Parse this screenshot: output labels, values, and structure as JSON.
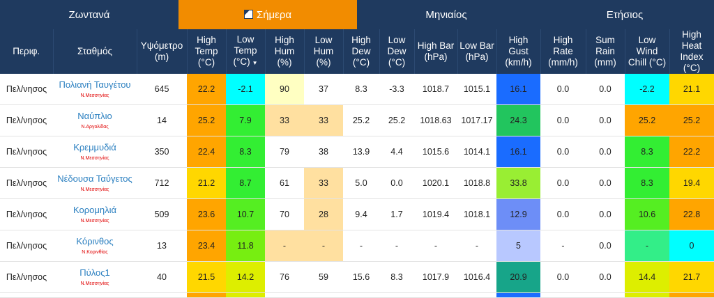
{
  "tabs": [
    {
      "label": "Ζωντανά",
      "active": false
    },
    {
      "label": "Σήμερα",
      "active": true,
      "icon": "calendar-icon"
    },
    {
      "label": "Μηνιαίος",
      "active": false
    },
    {
      "label": "Ετήσιος",
      "active": false
    }
  ],
  "headers": {
    "region": "Περιφ.",
    "station": "Σταθμός",
    "altitude": [
      "Υψόμετρο",
      "(m)"
    ],
    "high_temp": [
      "High",
      "Temp",
      "(°C)"
    ],
    "low_temp": [
      "Low",
      "Temp",
      "(°C)"
    ],
    "high_hum": [
      "High",
      "Hum",
      "(%)"
    ],
    "low_hum": [
      "Low",
      "Hum",
      "(%)"
    ],
    "high_dew": [
      "High",
      "Dew",
      "(°C)"
    ],
    "low_dew": [
      "Low",
      "Dew",
      "(°C)"
    ],
    "high_bar": [
      "High Bar",
      "(hPa)"
    ],
    "low_bar": [
      "Low Bar",
      "(hPa)"
    ],
    "high_gust": [
      "High Gust",
      "(km/h)"
    ],
    "high_rate": [
      "High Rate",
      "(mm/h)"
    ],
    "sum_rain": [
      "Sum",
      "Rain",
      "(mm)"
    ],
    "low_wind_chill": [
      "Low Wind",
      "Chill (°C)"
    ],
    "high_heat_index": [
      "High Heat",
      "Index (°C)"
    ],
    "sort_indicator": "▼"
  },
  "rows": [
    {
      "region": "Πελ/νησος",
      "station": "Πολιανή Ταυγέτου",
      "sub": "Ν.Μεσσηνίας",
      "altitude": "645",
      "high_temp": "22.2",
      "low_temp": "-2.1",
      "high_hum": "90",
      "low_hum": "37",
      "high_dew": "8.3",
      "low_dew": "-3.3",
      "high_bar": "1018.7",
      "low_bar": "1015.1",
      "high_gust": "16.1",
      "high_rate": "0.0",
      "sum_rain": "0.0",
      "low_wind_chill": "-2.2",
      "high_heat_index": "21.1",
      "colors": {
        "high_temp": "#ffa500",
        "low_temp": "#00ffff",
        "high_hum": "#ffffc2",
        "low_hum": "",
        "high_dew": "",
        "low_dew": "",
        "high_bar": "",
        "low_bar": "",
        "high_gust": "#1a6cff",
        "high_rate": "",
        "sum_rain": "",
        "low_wind_chill": "#00ffff",
        "high_heat_index": "#ffd700"
      }
    },
    {
      "region": "Πελ/νησος",
      "station": "Ναύπλιο",
      "sub": "Ν.Αργολίδας",
      "altitude": "14",
      "high_temp": "25.2",
      "low_temp": "7.9",
      "high_hum": "33",
      "low_hum": "33",
      "high_dew": "25.2",
      "low_dew": "25.2",
      "high_bar": "1018.63",
      "low_bar": "1017.17",
      "high_gust": "24.3",
      "high_rate": "0.0",
      "sum_rain": "0.0",
      "low_wind_chill": "25.2",
      "high_heat_index": "25.2",
      "colors": {
        "high_temp": "#ffa500",
        "low_temp": "#33ee33",
        "high_hum": "#ffe0a0",
        "low_hum": "#ffe0a0",
        "high_dew": "",
        "low_dew": "",
        "high_bar": "",
        "low_bar": "",
        "high_gust": "#22c55e",
        "high_rate": "",
        "sum_rain": "",
        "low_wind_chill": "#ffa500",
        "high_heat_index": "#ffa500"
      }
    },
    {
      "region": "Πελ/νησος",
      "station": "Κρεμμυδιά",
      "sub": "Ν.Μεσσηνίας",
      "altitude": "350",
      "high_temp": "22.4",
      "low_temp": "8.3",
      "high_hum": "79",
      "low_hum": "38",
      "high_dew": "13.9",
      "low_dew": "4.4",
      "high_bar": "1015.6",
      "low_bar": "1014.1",
      "high_gust": "16.1",
      "high_rate": "0.0",
      "sum_rain": "0.0",
      "low_wind_chill": "8.3",
      "high_heat_index": "22.2",
      "colors": {
        "high_temp": "#ffa500",
        "low_temp": "#33ee33",
        "high_hum": "",
        "low_hum": "",
        "high_dew": "",
        "low_dew": "",
        "high_bar": "",
        "low_bar": "",
        "high_gust": "#1a6cff",
        "high_rate": "",
        "sum_rain": "",
        "low_wind_chill": "#33ee33",
        "high_heat_index": "#ffa500"
      }
    },
    {
      "region": "Πελ/νησος",
      "station": "Νέδουσα Ταΰγετος",
      "sub": "Ν.Μεσσηνίας",
      "altitude": "712",
      "high_temp": "21.2",
      "low_temp": "8.7",
      "high_hum": "61",
      "low_hum": "33",
      "high_dew": "5.0",
      "low_dew": "0.0",
      "high_bar": "1020.1",
      "low_bar": "1018.8",
      "high_gust": "33.8",
      "high_rate": "0.0",
      "sum_rain": "0.0",
      "low_wind_chill": "8.3",
      "high_heat_index": "19.4",
      "colors": {
        "high_temp": "#ffd700",
        "low_temp": "#33ee33",
        "high_hum": "",
        "low_hum": "#ffe0a0",
        "high_dew": "",
        "low_dew": "",
        "high_bar": "",
        "low_bar": "",
        "high_gust": "#99ee33",
        "high_rate": "",
        "sum_rain": "",
        "low_wind_chill": "#33ee33",
        "high_heat_index": "#ffd700"
      }
    },
    {
      "region": "Πελ/νησος",
      "station": "Κορομηλιά",
      "sub": "Ν.Μεσσηνίας",
      "altitude": "509",
      "high_temp": "23.6",
      "low_temp": "10.7",
      "high_hum": "70",
      "low_hum": "28",
      "high_dew": "9.4",
      "low_dew": "1.7",
      "high_bar": "1019.4",
      "low_bar": "1018.1",
      "high_gust": "12.9",
      "high_rate": "0.0",
      "sum_rain": "0.0",
      "low_wind_chill": "10.6",
      "high_heat_index": "22.8",
      "colors": {
        "high_temp": "#ffa500",
        "low_temp": "#55ee22",
        "high_hum": "",
        "low_hum": "#ffe0a0",
        "high_dew": "",
        "low_dew": "",
        "high_bar": "",
        "low_bar": "",
        "high_gust": "#6d8ef7",
        "high_rate": "",
        "sum_rain": "",
        "low_wind_chill": "#55ee22",
        "high_heat_index": "#ffa500"
      }
    },
    {
      "region": "Πελ/νησος",
      "station": "Κόρινθος",
      "sub": "Ν.Κορινθίας",
      "altitude": "13",
      "high_temp": "23.4",
      "low_temp": "11.8",
      "high_hum": "-",
      "low_hum": "-",
      "high_dew": "-",
      "low_dew": "-",
      "high_bar": "-",
      "low_bar": "-",
      "high_gust": "5",
      "high_rate": "-",
      "sum_rain": "0.0",
      "low_wind_chill": "-",
      "high_heat_index": "0",
      "colors": {
        "high_temp": "#ffa500",
        "low_temp": "#77ee11",
        "high_hum": "#ffe0a0",
        "low_hum": "#ffe0a0",
        "high_dew": "",
        "low_dew": "",
        "high_bar": "",
        "low_bar": "",
        "high_gust": "#b8c8ff",
        "high_rate": "",
        "sum_rain": "",
        "low_wind_chill": "#33ee88",
        "high_heat_index": "#00ffff"
      }
    },
    {
      "region": "Πελ/νησος",
      "station": "Πύλος1",
      "sub": "Ν.Μεσσηνίας",
      "altitude": "40",
      "high_temp": "21.5",
      "low_temp": "14.2",
      "high_hum": "76",
      "low_hum": "59",
      "high_dew": "15.6",
      "low_dew": "8.3",
      "high_bar": "1017.9",
      "low_bar": "1016.4",
      "high_gust": "20.9",
      "high_rate": "0.0",
      "sum_rain": "0.0",
      "low_wind_chill": "14.4",
      "high_heat_index": "21.7",
      "colors": {
        "high_temp": "#ffd700",
        "low_temp": "#ddee00",
        "high_hum": "",
        "low_hum": "",
        "high_dew": "",
        "low_dew": "",
        "high_bar": "",
        "low_bar": "",
        "high_gust": "#17a589",
        "high_rate": "",
        "sum_rain": "",
        "low_wind_chill": "#ddee00",
        "high_heat_index": "#ffd700"
      }
    }
  ],
  "partial_row_colors": {
    "high_temp": "#ffa500",
    "low_temp": "#ddee00",
    "high_gust": "#1a6cff",
    "low_wind_chill": "#ddee00",
    "high_heat_index": "#ffa500"
  }
}
